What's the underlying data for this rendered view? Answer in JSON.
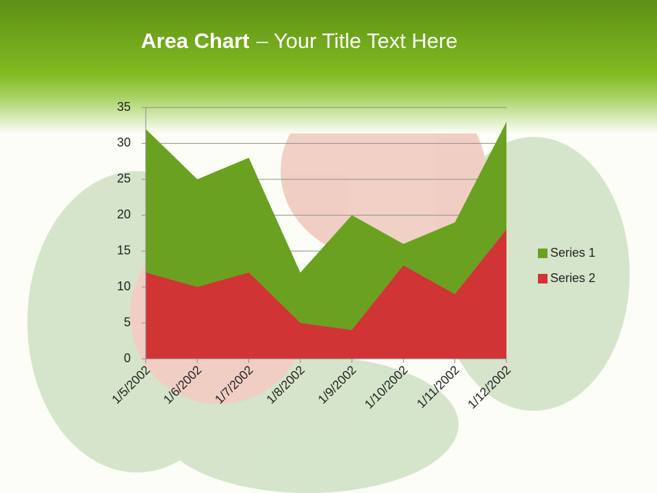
{
  "chart_data": {
    "type": "area",
    "title": [
      "Area Chart",
      "– Your Title Text Here"
    ],
    "categories": [
      "1/5/2002",
      "1/6/2002",
      "1/7/2002",
      "1/8/2002",
      "1/9/2002",
      "1/10/2002",
      "1/11/2002",
      "1/12/2002"
    ],
    "series": [
      {
        "name": "Series 1",
        "color": "#6aa121",
        "values": [
          32,
          25,
          28,
          12,
          20,
          16,
          19,
          33
        ]
      },
      {
        "name": "Series 2",
        "color": "#d03434",
        "values": [
          12,
          10,
          12,
          5,
          4,
          13,
          9,
          18
        ]
      }
    ],
    "ylim": [
      0,
      35
    ],
    "yticks": [
      0,
      5,
      10,
      15,
      20,
      25,
      30,
      35
    ],
    "grid": true,
    "legend": "right"
  }
}
